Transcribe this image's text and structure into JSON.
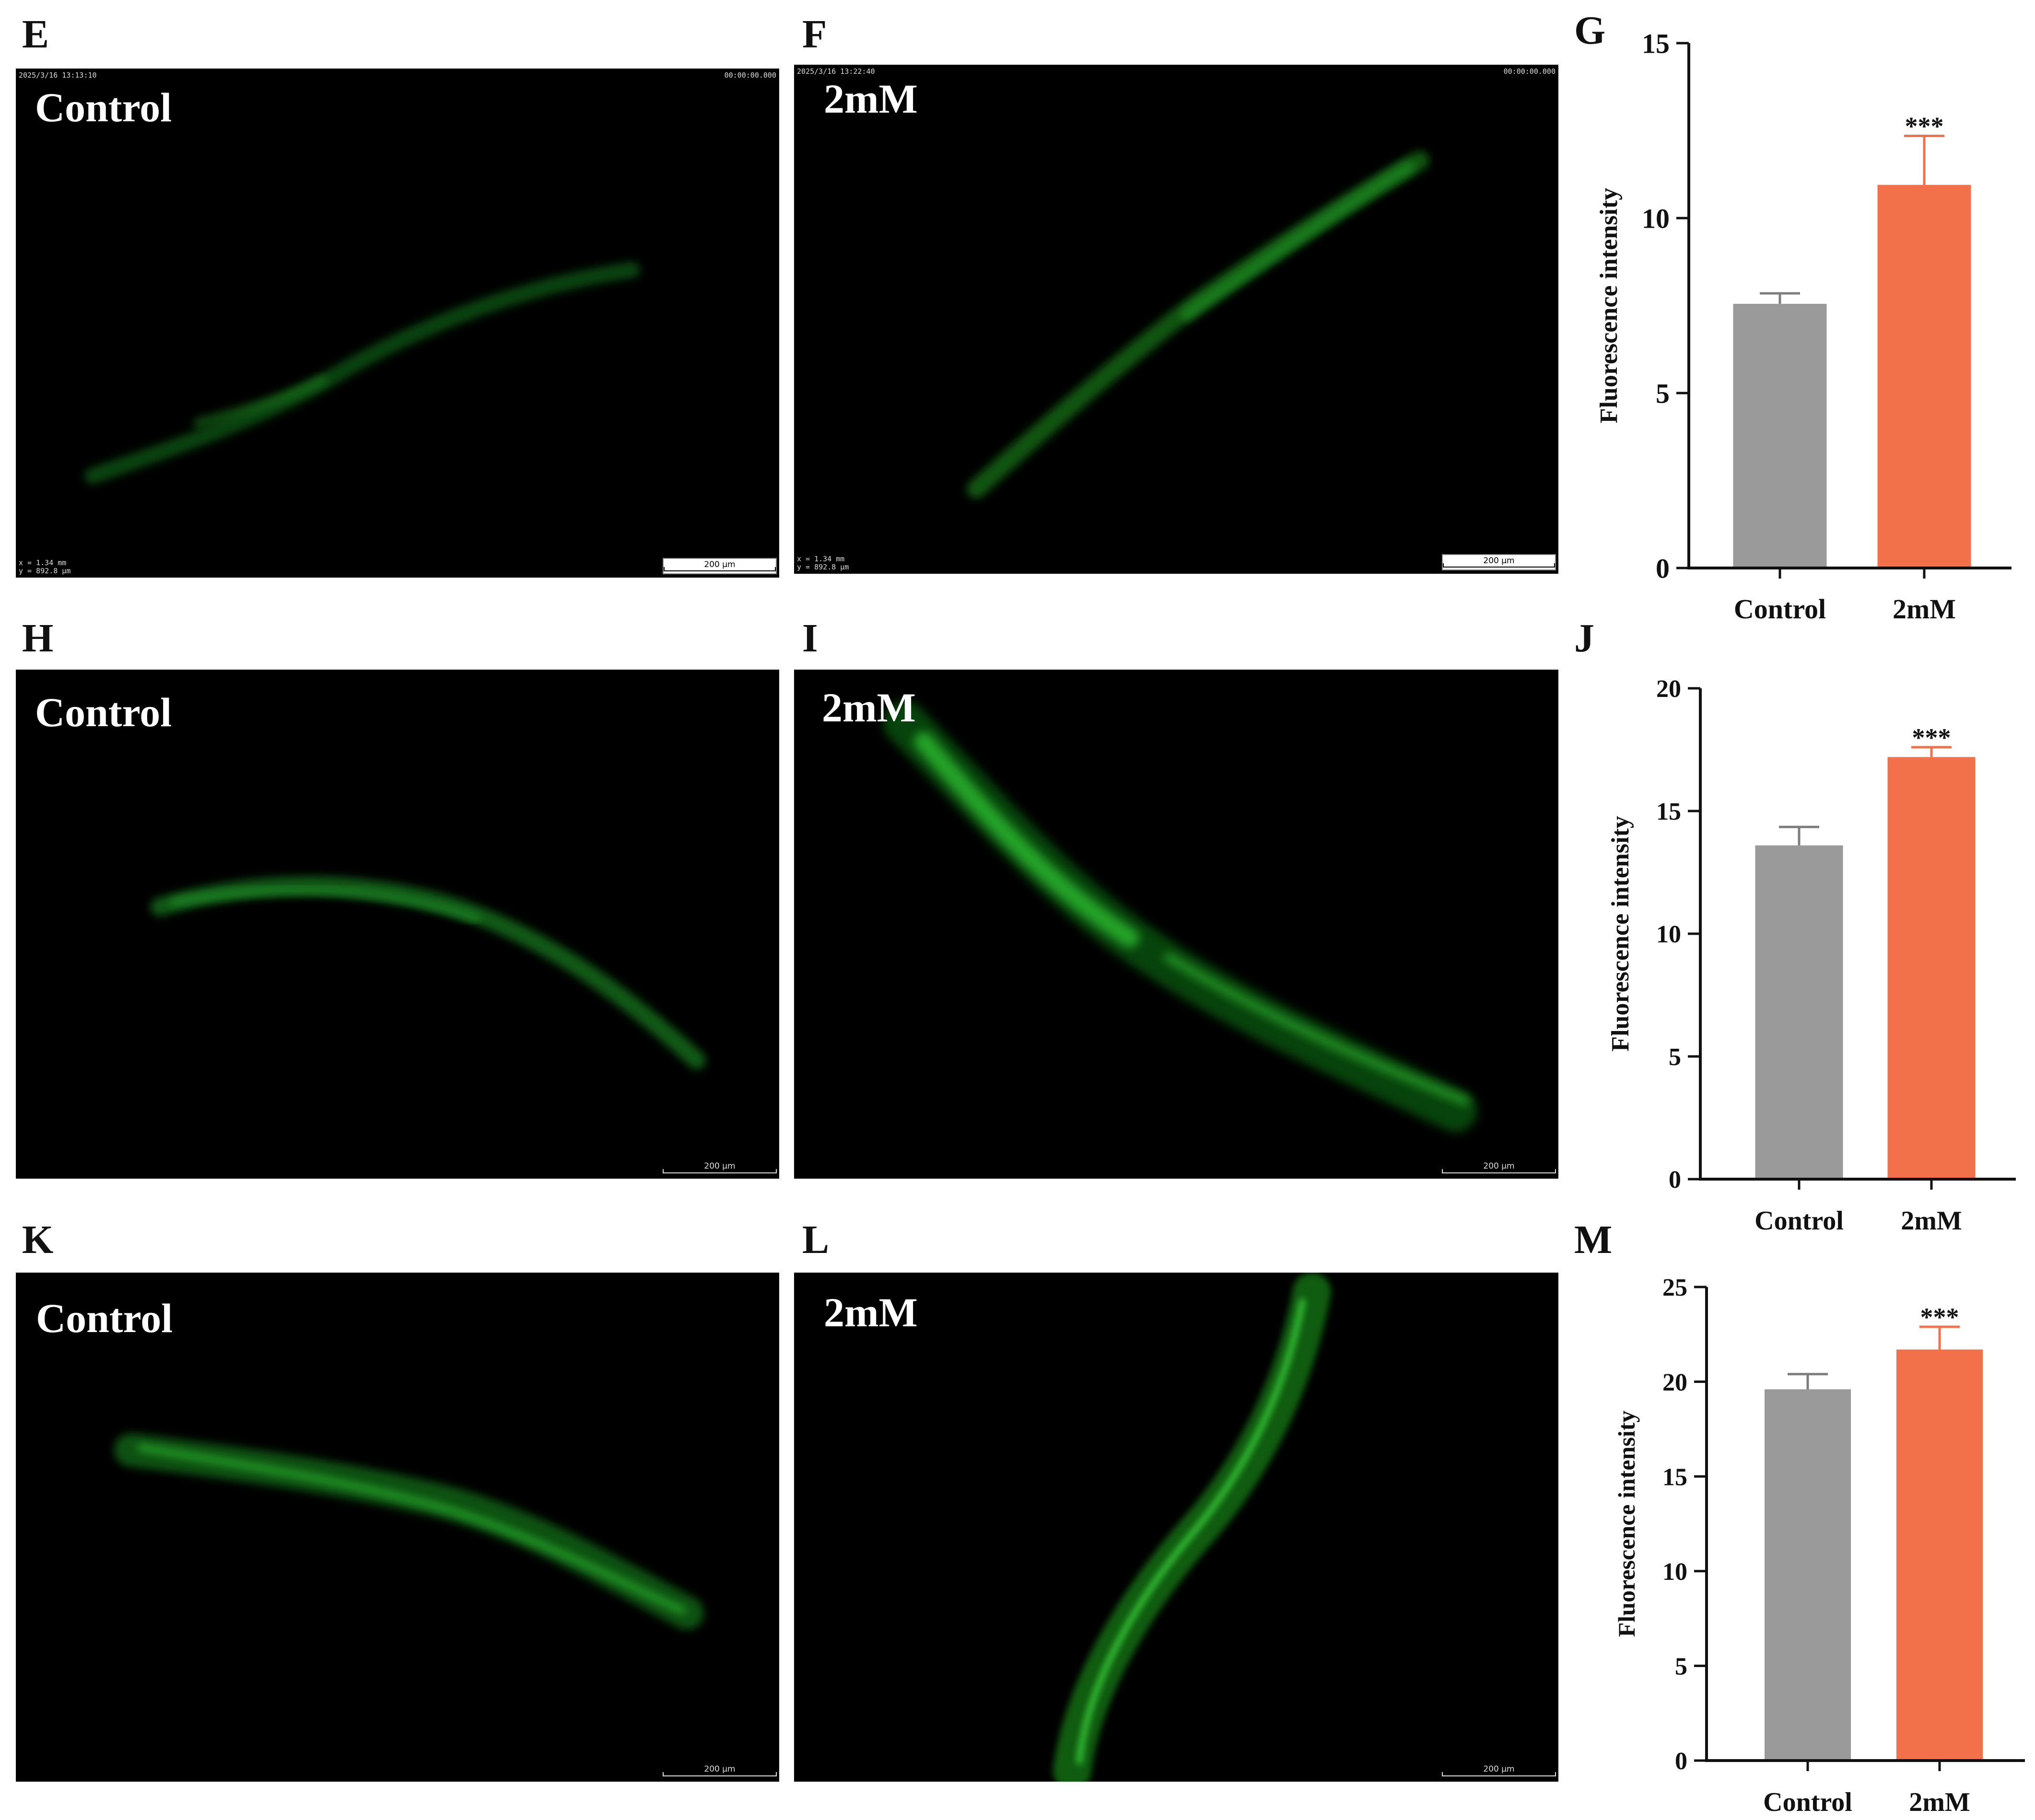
{
  "panels": {
    "E": {
      "letter": "E",
      "label": "Control",
      "timestamp": "2025/3/16 13:13:10",
      "timer": "00:00:00.000",
      "coords": "x = 1.34 mm\ny = 892.8 µm",
      "scale": "200 µm"
    },
    "F": {
      "letter": "F",
      "label": "2mM",
      "timestamp": "2025/3/16 13:22:40",
      "timer": "00:00:00.000",
      "coords": "x = 1.34 mm\ny = 892.8 µm",
      "scale": "200 µm"
    },
    "G": {
      "letter": "G"
    },
    "H": {
      "letter": "H",
      "label": "Control",
      "scale": "200 µm"
    },
    "I": {
      "letter": "I",
      "label": "2mM",
      "scale": "200 µm"
    },
    "J": {
      "letter": "J"
    },
    "K": {
      "letter": "K",
      "label": "Control",
      "scale": "200 µm"
    },
    "L": {
      "letter": "L",
      "label": "2mM",
      "scale": "200 µm"
    },
    "M": {
      "letter": "M"
    }
  },
  "colors": {
    "control_bar": "#9a9a9a",
    "treated_bar": "#f2714a",
    "fluorescence": "#2fd12f",
    "background": "#000000"
  },
  "chart_data": [
    {
      "panel": "G",
      "type": "bar",
      "categories": [
        "Control",
        "2mM"
      ],
      "values": [
        7.55,
        10.95
      ],
      "errors": [
        0.3,
        1.4
      ],
      "ylabel": "Fluorescence intensity",
      "ylim": [
        0,
        15
      ],
      "yticks": [
        0,
        5,
        10,
        15
      ],
      "significance": [
        "",
        "***"
      ]
    },
    {
      "panel": "J",
      "type": "bar",
      "categories": [
        "Control",
        "2mM"
      ],
      "values": [
        13.6,
        17.2
      ],
      "errors": [
        0.75,
        0.4
      ],
      "ylabel": "Fluorescence intensity",
      "ylim": [
        0,
        20
      ],
      "yticks": [
        0,
        5,
        10,
        15,
        20
      ],
      "significance": [
        "",
        "***"
      ]
    },
    {
      "panel": "M",
      "type": "bar",
      "categories": [
        "Control",
        "2mM"
      ],
      "values": [
        19.6,
        21.7
      ],
      "errors": [
        0.8,
        1.2
      ],
      "ylabel": "Fluorescence intensity",
      "ylim": [
        0,
        25
      ],
      "yticks": [
        0,
        5,
        10,
        15,
        20,
        25
      ],
      "significance": [
        "",
        "***"
      ]
    }
  ]
}
